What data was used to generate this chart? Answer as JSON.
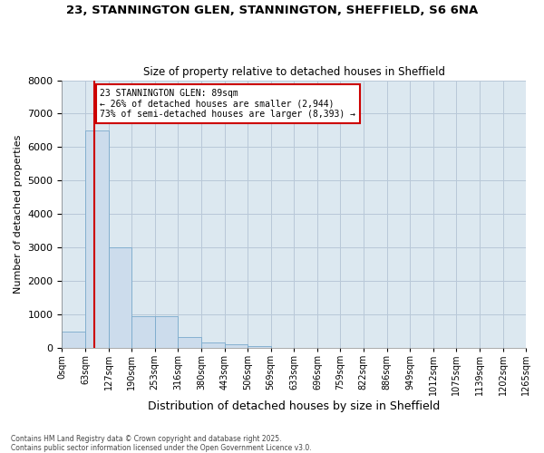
{
  "title_line1": "23, STANNINGTON GLEN, STANNINGTON, SHEFFIELD, S6 6NA",
  "title_line2": "Size of property relative to detached houses in Sheffield",
  "xlabel": "Distribution of detached houses by size in Sheffield",
  "ylabel": "Number of detached properties",
  "bar_edges": [
    0,
    63,
    127,
    190,
    253,
    316,
    380,
    443,
    506,
    569,
    633,
    696,
    759,
    822,
    886,
    949,
    1012,
    1075,
    1139,
    1202,
    1265
  ],
  "bar_heights": [
    480,
    6500,
    3000,
    950,
    950,
    330,
    170,
    100,
    55,
    10,
    0,
    0,
    0,
    0,
    0,
    0,
    0,
    0,
    0,
    0
  ],
  "bar_color": "#ccdcec",
  "bar_edgecolor": "#7aaacc",
  "grid_color": "#b8c8d8",
  "background_color": "#dce8f0",
  "vline_x": 89,
  "vline_color": "#cc0000",
  "annotation_text": "23 STANNINGTON GLEN: 89sqm\n← 26% of detached houses are smaller (2,944)\n73% of semi-detached houses are larger (8,393) →",
  "annotation_box_color": "#cc0000",
  "ylim": [
    0,
    8000
  ],
  "yticks": [
    0,
    1000,
    2000,
    3000,
    4000,
    5000,
    6000,
    7000,
    8000
  ],
  "xtick_labels": [
    "0sqm",
    "63sqm",
    "127sqm",
    "190sqm",
    "253sqm",
    "316sqm",
    "380sqm",
    "443sqm",
    "506sqm",
    "569sqm",
    "633sqm",
    "696sqm",
    "759sqm",
    "822sqm",
    "886sqm",
    "949sqm",
    "1012sqm",
    "1075sqm",
    "1139sqm",
    "1202sqm",
    "1265sqm"
  ],
  "footnote": "Contains HM Land Registry data © Crown copyright and database right 2025.\nContains public sector information licensed under the Open Government Licence v3.0."
}
